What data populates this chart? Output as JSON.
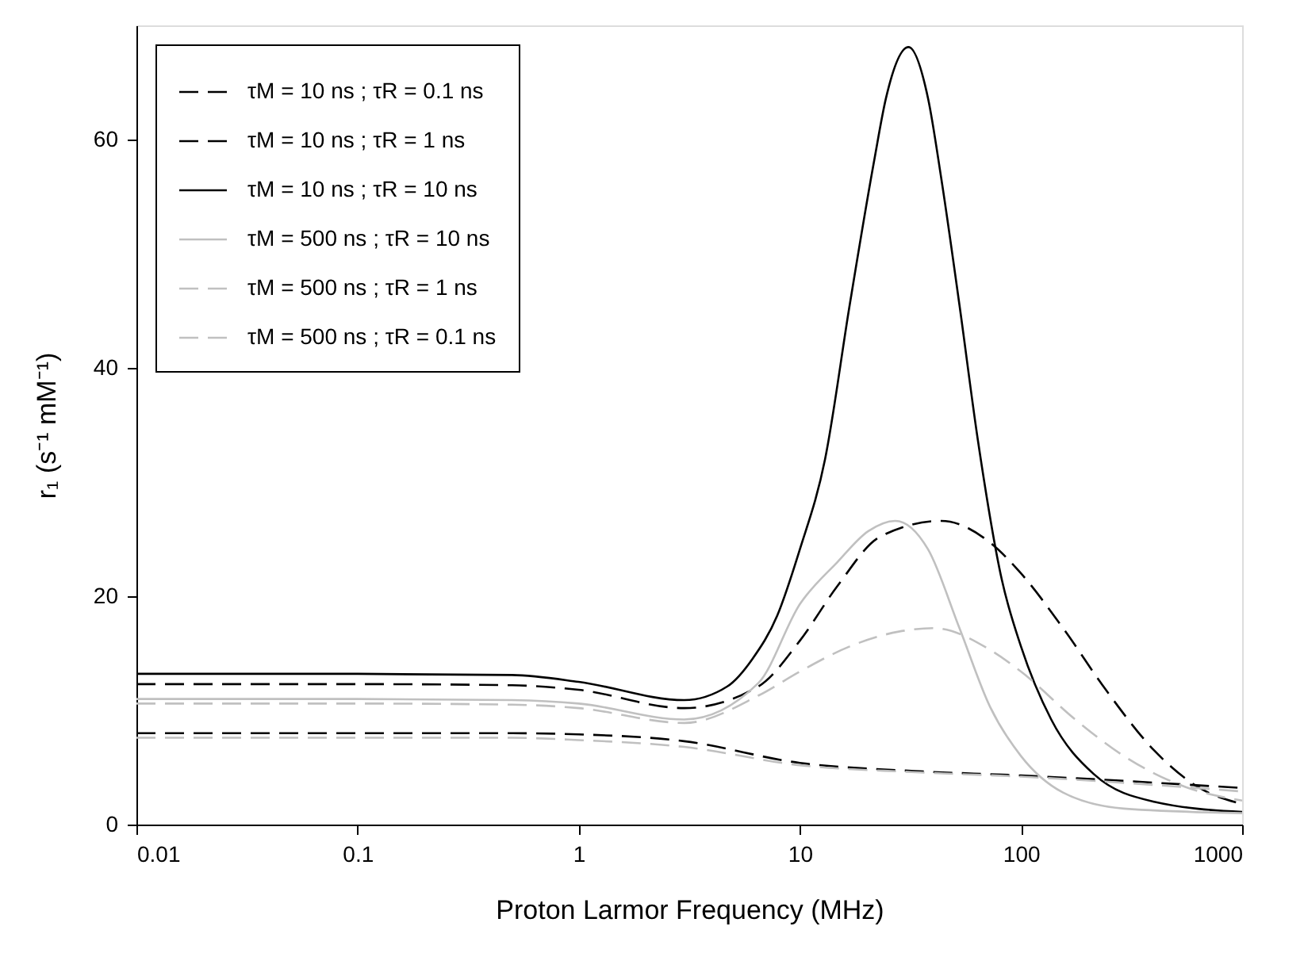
{
  "chart_data": {
    "type": "line",
    "xlabel": "Proton Larmor Frequency (MHz)",
    "ylabel": "r₁ (s⁻¹ mM⁻¹)",
    "log": "x",
    "xlim": [
      0.01,
      1000
    ],
    "xticks": [
      0.01,
      0.1,
      1,
      10,
      100,
      1000
    ],
    "ylim": [
      0,
      70
    ],
    "yticks": [
      0,
      20,
      40,
      60
    ],
    "grid": false,
    "legend": "top left",
    "marker": "none",
    "series": [
      {
        "name": "τM = 10 ns ; τR = 0.1 ns",
        "color": "#000000",
        "line_style": "dashed",
        "x": [
          0.01,
          0.1,
          0.5,
          1,
          3,
          10,
          32,
          100,
          1000
        ],
        "values": [
          8.0,
          8.0,
          8.0,
          7.9,
          7.3,
          5.4,
          4.7,
          4.3,
          3.2
        ]
      },
      {
        "name": "τM = 10 ns ; τR = 1 ns",
        "color": "#000000",
        "line_style": "dashed",
        "x": [
          0.01,
          0.1,
          0.5,
          1,
          3,
          6.5,
          10,
          14.8,
          23,
          43.6,
          72.5,
          100,
          155,
          242,
          400,
          630,
          1000
        ],
        "values": [
          12.3,
          12.3,
          12.2,
          11.8,
          10.2,
          12.1,
          16.1,
          20.9,
          25.2,
          26.6,
          24.7,
          22.0,
          17.2,
          11.8,
          6.5,
          3.3,
          1.8
        ]
      },
      {
        "name": "τM = 10 ns ; τR = 10 ns",
        "color": "#000000",
        "line_style": "solid",
        "x": [
          0.01,
          0.1,
          0.5,
          1,
          3,
          4.7,
          6.1,
          7.9,
          10,
          13,
          16.8,
          21.7,
          24.5,
          31,
          38,
          43.6,
          52.7,
          63.8,
          82,
          100,
          137,
          214,
          400,
          1000
        ],
        "values": [
          13.2,
          13.2,
          13.1,
          12.5,
          10.9,
          12.1,
          14.5,
          18.3,
          24.1,
          32.0,
          45.5,
          58.2,
          63.6,
          68.1,
          63.6,
          56.6,
          45.5,
          33.7,
          21.4,
          15.6,
          9.2,
          4.4,
          2.0,
          1.1
        ]
      },
      {
        "name": "τM = 500 ns ; τR = 10 ns",
        "color": "#c0c0c0",
        "line_style": "solid",
        "x": [
          0.01,
          0.1,
          0.5,
          1,
          3,
          6.5,
          10,
          14.8,
          20.4,
          27,
          38,
          52.7,
          72.5,
          100,
          155,
          292,
          1000
        ],
        "values": [
          11.0,
          11.0,
          10.9,
          10.6,
          9.2,
          12.4,
          19.3,
          23.0,
          25.7,
          26.6,
          24.1,
          17.2,
          10.3,
          6.0,
          2.8,
          1.4,
          1.0
        ]
      },
      {
        "name": "τM = 500 ns ; τR = 1 ns",
        "color": "#c0c0c0",
        "line_style": "dashed",
        "x": [
          0.01,
          0.1,
          0.5,
          1,
          3,
          6.5,
          10,
          16.8,
          28,
          40.5,
          72.5,
          100,
          176,
          292,
          553,
          1000
        ],
        "values": [
          10.6,
          10.6,
          10.5,
          10.2,
          8.9,
          11.3,
          13.4,
          15.6,
          16.9,
          17.2,
          15.3,
          13.4,
          9.2,
          6.0,
          3.3,
          2.1
        ]
      },
      {
        "name": "τM = 500 ns ; τR = 0.1 ns",
        "color": "#c0c0c0",
        "line_style": "dashed",
        "x": [
          0.01,
          0.1,
          0.5,
          1,
          3,
          10,
          32,
          100,
          1000
        ],
        "values": [
          7.6,
          7.6,
          7.6,
          7.4,
          6.8,
          5.2,
          4.6,
          4.2,
          2.9
        ]
      }
    ]
  }
}
